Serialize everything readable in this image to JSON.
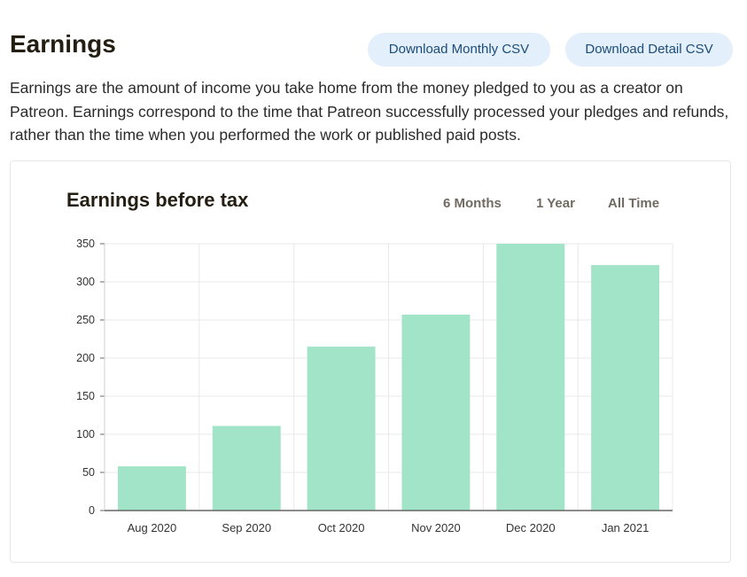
{
  "header": {
    "title": "Earnings",
    "download_monthly_label": "Download Monthly CSV",
    "download_detail_label": "Download Detail CSV"
  },
  "description": "Earnings are the amount of income you take home from the money pledged to you as a creator on Patreon. Earnings correspond to the time that Patreon successfully processed your pledges and refunds, rather than the time when you performed the work or published paid posts.",
  "chart_panel": {
    "range_tabs": [
      "6 Months",
      "1 Year",
      "All Time"
    ]
  },
  "colors": {
    "bar": "#a1e4c8",
    "button_bg": "#e3effb",
    "button_text": "#1b4c7a",
    "grid": "#e8e8e8",
    "axis": "#666666"
  },
  "chart_data": {
    "type": "bar",
    "title": "Earnings before tax",
    "xlabel": "",
    "ylabel": "",
    "categories": [
      "Aug 2020",
      "Sep 2020",
      "Oct 2020",
      "Nov 2020",
      "Dec 2020",
      "Jan 2021"
    ],
    "values": [
      58,
      111,
      215,
      257,
      350,
      322
    ],
    "ylim": [
      0,
      350
    ],
    "yticks": [
      0,
      50,
      100,
      150,
      200,
      250,
      300,
      350
    ],
    "grid": true,
    "legend": "none"
  }
}
